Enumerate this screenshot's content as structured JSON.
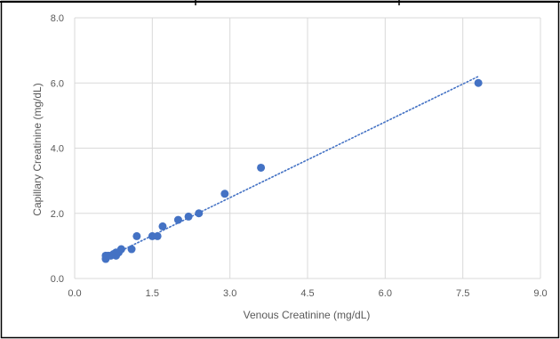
{
  "chart_data": {
    "type": "scatter",
    "title": "",
    "xlabel": "Venous Creatinine (mg/dL)",
    "ylabel": "Capillary Creatinine (mg/dL)",
    "xlim": [
      0,
      9
    ],
    "ylim": [
      0,
      8
    ],
    "x_ticks": [
      "0.0",
      "1.5",
      "3.0",
      "4.5",
      "6.0",
      "7.5",
      "9.0"
    ],
    "x_tick_values": [
      0,
      1.5,
      3.0,
      4.5,
      6.0,
      7.5,
      9.0
    ],
    "y_ticks": [
      "0.0",
      "2.0",
      "4.0",
      "6.0",
      "8.0"
    ],
    "y_tick_values": [
      0,
      2.0,
      4.0,
      6.0,
      8.0
    ],
    "grid": true,
    "legend": "none",
    "series": [
      {
        "values": [
          {
            "x": 0.6,
            "y": 0.6
          },
          {
            "x": 0.6,
            "y": 0.7
          },
          {
            "x": 0.65,
            "y": 0.7
          },
          {
            "x": 0.7,
            "y": 0.7
          },
          {
            "x": 0.75,
            "y": 0.75
          },
          {
            "x": 0.8,
            "y": 0.7
          },
          {
            "x": 0.8,
            "y": 0.8
          },
          {
            "x": 0.85,
            "y": 0.8
          },
          {
            "x": 0.9,
            "y": 0.9
          },
          {
            "x": 1.1,
            "y": 0.9
          },
          {
            "x": 1.2,
            "y": 1.3
          },
          {
            "x": 1.5,
            "y": 1.3
          },
          {
            "x": 1.6,
            "y": 1.3
          },
          {
            "x": 1.7,
            "y": 1.6
          },
          {
            "x": 2.0,
            "y": 1.8
          },
          {
            "x": 2.2,
            "y": 1.9
          },
          {
            "x": 2.4,
            "y": 2.0
          },
          {
            "x": 2.9,
            "y": 2.6
          },
          {
            "x": 3.6,
            "y": 3.4
          },
          {
            "x": 7.8,
            "y": 6.0
          }
        ]
      }
    ],
    "trendline": {
      "style": "dotted",
      "x_range": [
        0.6,
        7.8
      ],
      "slope": 0.775,
      "intercept": 0.155
    },
    "colors": {
      "marker": "#4472c4",
      "trendline": "#4472c4",
      "grid": "#d9d9d9",
      "text": "#595959",
      "frame": "#000000"
    }
  }
}
